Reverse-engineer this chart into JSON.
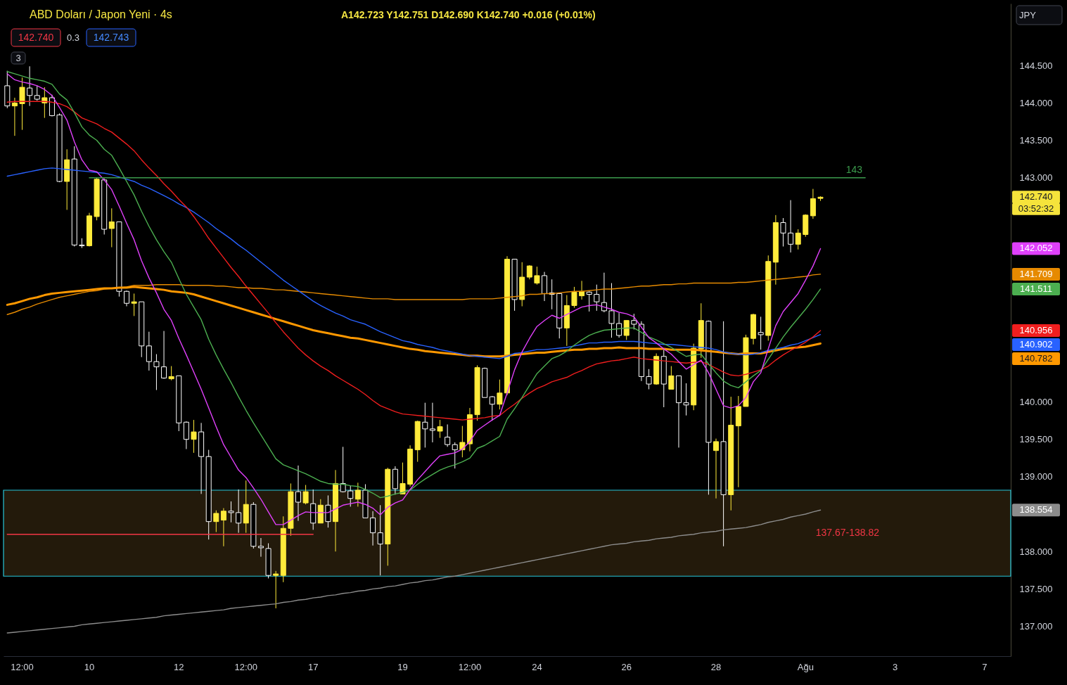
{
  "chart_data": {
    "type": "candlestick",
    "title": "ABD Doları / Japon Yeni · 4s",
    "subtitle": "A142.723 Y142.751 D142.690 K142.740 +0.016 (+0.01%)",
    "categories": [
      null,
      null,
      "12:00",
      null,
      null,
      null,
      null,
      null,
      null,
      null,
      null,
      "10",
      null,
      null,
      null,
      null,
      null,
      null,
      null,
      null,
      null,
      null,
      null,
      "12",
      null,
      null,
      null,
      null,
      null,
      null,
      null,
      null,
      "12:00",
      null,
      null,
      null,
      null,
      null,
      null,
      null,
      null,
      "17",
      null,
      null,
      null,
      null,
      null,
      null,
      null,
      null,
      null,
      null,
      null,
      "19",
      null,
      null,
      null,
      null,
      null,
      null,
      null,
      null,
      "12:00",
      null,
      null,
      null,
      null,
      null,
      null,
      null,
      null,
      "24",
      null,
      null,
      null,
      null,
      null,
      null,
      null,
      null,
      null,
      null,
      null,
      "26",
      null,
      null,
      null,
      null,
      null,
      null,
      null,
      null,
      null,
      null,
      null,
      "28",
      null,
      null,
      null,
      null,
      null,
      null,
      null,
      null,
      null,
      null,
      null,
      "Ağu",
      null,
      null,
      null,
      null,
      null,
      null,
      null,
      null,
      null,
      null,
      null,
      "3",
      null,
      null,
      null,
      null,
      null,
      null,
      null,
      null,
      null,
      null,
      null,
      "7",
      null,
      null,
      null
    ],
    "ohlc": [
      [
        144.23,
        144.43,
        143.93,
        143.96
      ],
      [
        143.96,
        144.07,
        143.56,
        144.0
      ],
      [
        143.99,
        144.34,
        143.64,
        144.21
      ],
      [
        144.2,
        144.49,
        143.96,
        144.1
      ],
      [
        144.1,
        144.23,
        144.03,
        144.05
      ],
      [
        144.0,
        144.21,
        143.8,
        144.07
      ],
      [
        144.07,
        144.11,
        143.82,
        143.83
      ],
      [
        143.84,
        143.86,
        142.94,
        142.95
      ],
      [
        142.95,
        143.38,
        142.57,
        143.24
      ],
      [
        143.25,
        143.42,
        142.08,
        142.1
      ],
      [
        142.1,
        142.19,
        142.06,
        142.09
      ],
      [
        142.09,
        142.53,
        142.08,
        142.49
      ],
      [
        142.48,
        143.0,
        142.43,
        142.98
      ],
      [
        142.97,
        142.99,
        142.24,
        142.31
      ],
      [
        142.32,
        142.59,
        142.07,
        142.41
      ],
      [
        142.41,
        142.41,
        141.41,
        141.48
      ],
      [
        141.48,
        141.49,
        141.28,
        141.32
      ],
      [
        141.32,
        141.45,
        141.15,
        141.34
      ],
      [
        141.34,
        141.34,
        140.6,
        140.75
      ],
      [
        140.75,
        140.94,
        140.42,
        140.54
      ],
      [
        140.54,
        140.64,
        140.16,
        140.47
      ],
      [
        140.47,
        140.95,
        140.31,
        140.32
      ],
      [
        140.31,
        140.48,
        140.29,
        140.34
      ],
      [
        140.35,
        140.35,
        139.61,
        139.72
      ],
      [
        139.73,
        139.74,
        139.37,
        139.5
      ],
      [
        139.5,
        139.76,
        139.32,
        139.6
      ],
      [
        139.6,
        139.72,
        138.77,
        139.27
      ],
      [
        139.27,
        139.36,
        138.16,
        138.4
      ],
      [
        138.4,
        138.55,
        138.26,
        138.51
      ],
      [
        138.42,
        138.58,
        138.07,
        138.54
      ],
      [
        138.54,
        138.67,
        138.39,
        138.52
      ],
      [
        138.52,
        138.83,
        138.25,
        138.38
      ],
      [
        138.38,
        138.95,
        138.25,
        138.63
      ],
      [
        138.63,
        138.66,
        138.04,
        138.07
      ],
      [
        138.07,
        138.18,
        137.93,
        138.05
      ],
      [
        138.04,
        138.11,
        137.64,
        137.68
      ],
      [
        137.68,
        137.74,
        137.24,
        137.7
      ],
      [
        137.68,
        138.47,
        137.59,
        138.31
      ],
      [
        138.31,
        138.91,
        138.21,
        138.8
      ],
      [
        138.8,
        139.15,
        138.41,
        138.66
      ],
      [
        138.65,
        138.89,
        138.63,
        138.8
      ],
      [
        138.64,
        138.83,
        138.29,
        138.38
      ],
      [
        138.38,
        138.7,
        138.38,
        138.62
      ],
      [
        138.62,
        138.75,
        138.32,
        138.4
      ],
      [
        138.4,
        139.09,
        138.0,
        138.91
      ],
      [
        138.91,
        139.4,
        138.79,
        138.8
      ],
      [
        138.81,
        138.88,
        138.6,
        138.71
      ],
      [
        138.7,
        138.92,
        138.6,
        138.82
      ],
      [
        138.82,
        138.9,
        138.45,
        138.45
      ],
      [
        138.45,
        138.54,
        138.08,
        138.25
      ],
      [
        138.25,
        138.62,
        137.68,
        138.1
      ],
      [
        138.1,
        139.12,
        137.81,
        139.1
      ],
      [
        139.1,
        139.14,
        138.76,
        138.84
      ],
      [
        138.77,
        139.19,
        138.77,
        138.91
      ],
      [
        138.9,
        139.42,
        138.87,
        139.37
      ],
      [
        139.36,
        139.75,
        139.2,
        139.74
      ],
      [
        139.73,
        139.99,
        139.39,
        139.64
      ],
      [
        139.64,
        139.99,
        139.46,
        139.62
      ],
      [
        139.61,
        139.76,
        139.52,
        139.67
      ],
      [
        139.53,
        139.7,
        139.4,
        139.43
      ],
      [
        139.43,
        139.46,
        139.11,
        139.36
      ],
      [
        139.36,
        139.68,
        139.26,
        139.46
      ],
      [
        139.44,
        139.92,
        139.34,
        139.83
      ],
      [
        139.83,
        140.49,
        139.75,
        140.46
      ],
      [
        140.45,
        140.46,
        140.06,
        140.06
      ],
      [
        140.07,
        140.08,
        139.75,
        139.97
      ],
      [
        139.97,
        140.3,
        139.9,
        140.12
      ],
      [
        140.12,
        141.95,
        140.09,
        141.91
      ],
      [
        141.91,
        141.91,
        141.22,
        141.37
      ],
      [
        141.37,
        141.87,
        141.28,
        141.67
      ],
      [
        141.67,
        141.83,
        141.64,
        141.82
      ],
      [
        141.59,
        141.81,
        141.57,
        141.69
      ],
      [
        141.69,
        141.74,
        141.35,
        141.45
      ],
      [
        141.46,
        141.64,
        141.24,
        141.44
      ],
      [
        141.45,
        141.46,
        140.85,
        140.99
      ],
      [
        140.99,
        141.43,
        140.75,
        141.29
      ],
      [
        141.29,
        141.54,
        141.26,
        141.47
      ],
      [
        141.42,
        141.62,
        141.37,
        141.48
      ],
      [
        141.47,
        141.48,
        141.21,
        141.44
      ],
      [
        141.44,
        141.57,
        141.22,
        141.34
      ],
      [
        141.33,
        141.73,
        141.2,
        141.22
      ],
      [
        141.22,
        141.59,
        140.86,
        141.05
      ],
      [
        141.05,
        141.19,
        140.86,
        140.89
      ],
      [
        140.89,
        141.09,
        140.83,
        141.09
      ],
      [
        141.09,
        141.18,
        140.97,
        141.04
      ],
      [
        141.04,
        141.08,
        140.28,
        140.34
      ],
      [
        140.34,
        140.44,
        140.17,
        140.24
      ],
      [
        140.24,
        140.65,
        140.23,
        140.61
      ],
      [
        140.61,
        140.7,
        139.93,
        140.24
      ],
      [
        140.17,
        140.48,
        140.17,
        140.35
      ],
      [
        140.35,
        140.35,
        139.39,
        139.99
      ],
      [
        139.99,
        140.25,
        139.82,
        139.96
      ],
      [
        139.96,
        140.78,
        139.89,
        140.72
      ],
      [
        140.71,
        141.32,
        140.59,
        141.09
      ],
      [
        141.08,
        141.09,
        138.76,
        139.46
      ],
      [
        139.35,
        139.51,
        138.71,
        139.47
      ],
      [
        139.47,
        141.08,
        138.07,
        138.76
      ],
      [
        138.76,
        140.07,
        138.55,
        139.69
      ],
      [
        139.68,
        140.08,
        138.86,
        139.94
      ],
      [
        139.94,
        140.9,
        139.94,
        140.86
      ],
      [
        140.85,
        141.18,
        140.77,
        141.17
      ],
      [
        140.93,
        141.14,
        140.7,
        140.9
      ],
      [
        140.89,
        141.96,
        140.82,
        141.88
      ],
      [
        141.87,
        142.5,
        141.57,
        142.4
      ],
      [
        142.4,
        142.46,
        142.08,
        142.26
      ],
      [
        142.26,
        142.7,
        142.0,
        142.11
      ],
      [
        142.11,
        142.31,
        142.04,
        142.26
      ],
      [
        142.24,
        142.51,
        142.21,
        142.5
      ],
      [
        142.49,
        142.85,
        142.45,
        142.72
      ],
      [
        142.723,
        142.751,
        142.69,
        142.74
      ],
      null,
      null,
      null,
      null,
      null,
      null,
      null,
      null,
      null,
      null,
      null,
      null,
      null,
      null,
      null,
      null,
      null,
      null,
      null,
      null,
      null,
      null,
      null,
      null,
      null
    ],
    "colors": [
      "#ffffff",
      "#ffeb3b",
      "#ffeb3b",
      "#ffffff",
      "#ffffff",
      "#ffeb3b",
      "#ffffff",
      "#ffffff",
      "#ffeb3b",
      "#ffffff",
      "#ffffff",
      "#ffeb3b",
      "#ffeb3b",
      "#ffffff",
      "#ffeb3b",
      "#ffffff",
      "#ffffff",
      "#ffeb3b",
      "#ffffff",
      "#ffffff",
      "#ffffff",
      "#ffffff",
      "#ffeb3b",
      "#ffffff",
      "#ffffff",
      "#ffeb3b",
      "#ffffff",
      "#ffffff",
      "#ffeb3b",
      "#ffeb3b",
      "#ffffff",
      "#ffffff",
      "#ffeb3b",
      "#ffffff",
      "#ffffff",
      "#ffffff",
      "#ffeb3b",
      "#ffeb3b",
      "#ffeb3b",
      "#ffffff",
      "#ffeb3b",
      "#ffffff",
      "#ffeb3b",
      "#ffffff",
      "#ffeb3b",
      "#ffffff",
      "#ffffff",
      "#ffeb3b",
      "#ffffff",
      "#ffffff",
      "#ffffff",
      "#ffeb3b",
      "#ffffff",
      "#ffeb3b",
      "#ffeb3b",
      "#ffeb3b",
      "#ffffff",
      "#ffffff",
      "#ffeb3b",
      "#ffffff",
      "#ffffff",
      "#ffeb3b",
      "#ffeb3b",
      "#ffeb3b",
      "#ffffff",
      "#ffffff",
      "#ffeb3b",
      "#ffeb3b",
      "#ffffff",
      "#ffeb3b",
      "#ffeb3b",
      "#ffeb3b",
      "#ffffff",
      "#ffffff",
      "#ffffff",
      "#ffeb3b",
      "#ffeb3b",
      "#ffeb3b",
      "#ffffff",
      "#ffffff",
      "#ffffff",
      "#ffffff",
      "#ffffff",
      "#ffeb3b",
      "#ffffff",
      "#ffffff",
      "#ffffff",
      "#ffeb3b",
      "#ffffff",
      "#ffeb3b",
      "#ffffff",
      "#ffffff",
      "#ffeb3b",
      "#ffeb3b",
      "#ffffff",
      "#ffeb3b",
      "#ffffff",
      "#ffeb3b",
      "#ffeb3b",
      "#ffeb3b",
      "#ffeb3b",
      "#ffffff",
      "#ffeb3b",
      "#ffeb3b",
      "#ffffff",
      "#ffffff",
      "#ffeb3b",
      "#ffeb3b",
      "#ffeb3b",
      "#ffeb3b",
      null,
      null,
      null,
      null,
      null,
      null,
      null,
      null,
      null,
      null,
      null,
      null,
      null,
      null,
      null,
      null,
      null,
      null,
      null,
      null,
      null,
      null,
      null,
      null,
      null
    ],
    "series": [
      {
        "type": "line",
        "color": "#8c8c8c",
        "values": [
          136.91,
          136.92,
          136.93,
          136.94,
          136.95,
          136.96,
          136.97,
          136.98,
          136.99,
          137.0,
          137.02,
          137.03,
          137.04,
          137.05,
          137.06,
          137.07,
          137.08,
          137.09,
          137.1,
          137.11,
          137.12,
          137.14,
          137.15,
          137.16,
          137.17,
          137.18,
          137.19,
          137.2,
          137.21,
          137.22,
          137.24,
          137.25,
          137.26,
          137.27,
          137.28,
          137.29,
          137.3,
          137.32,
          137.33,
          137.35,
          137.36,
          137.38,
          137.39,
          137.41,
          137.42,
          137.44,
          137.45,
          137.47,
          137.48,
          137.5,
          137.51,
          137.53,
          137.54,
          137.56,
          137.58,
          137.59,
          137.61,
          137.62,
          137.64,
          137.66,
          137.67,
          137.69,
          137.71,
          137.73,
          137.75,
          137.77,
          137.79,
          137.81,
          137.83,
          137.85,
          137.87,
          137.89,
          137.91,
          137.93,
          137.95,
          137.97,
          137.99,
          138.01,
          138.03,
          138.05,
          138.07,
          138.09,
          138.1,
          138.11,
          138.13,
          138.14,
          138.15,
          138.17,
          138.18,
          138.19,
          138.21,
          138.22,
          138.23,
          138.25,
          138.26,
          138.27,
          138.29,
          138.3,
          138.31,
          138.32,
          138.34,
          138.36,
          138.39,
          138.41,
          138.43,
          138.46,
          138.48,
          138.5,
          138.53,
          138.554,
          null,
          null,
          null,
          null,
          null,
          null,
          null,
          null,
          null,
          null,
          null,
          null,
          null,
          null,
          null,
          null,
          null,
          null,
          null,
          null,
          null,
          null,
          null,
          null,
          null
        ]
      },
      {
        "type": "line",
        "color": "#e68a00",
        "values": [
          141.17,
          141.2,
          141.24,
          141.27,
          141.31,
          141.34,
          141.37,
          141.4,
          141.42,
          141.44,
          141.46,
          141.48,
          141.49,
          141.51,
          141.52,
          141.53,
          141.54,
          141.56,
          141.56,
          141.56,
          141.57,
          141.57,
          141.57,
          141.57,
          141.56,
          141.56,
          141.56,
          141.56,
          141.55,
          141.55,
          141.54,
          141.53,
          141.53,
          141.52,
          141.52,
          141.51,
          141.5,
          141.5,
          141.49,
          141.48,
          141.47,
          141.46,
          141.45,
          141.44,
          141.43,
          141.42,
          141.41,
          141.4,
          141.39,
          141.38,
          141.38,
          141.38,
          141.37,
          141.37,
          141.37,
          141.37,
          141.37,
          141.37,
          141.37,
          141.37,
          141.37,
          141.37,
          141.38,
          141.38,
          141.38,
          141.38,
          141.39,
          141.4,
          141.41,
          141.42,
          141.44,
          141.44,
          141.45,
          141.45,
          141.46,
          141.47,
          141.48,
          141.48,
          141.49,
          141.5,
          141.51,
          141.51,
          141.52,
          141.53,
          141.54,
          141.55,
          141.55,
          141.56,
          141.57,
          141.57,
          141.58,
          141.58,
          141.59,
          141.59,
          141.59,
          141.59,
          141.59,
          141.59,
          141.6,
          141.6,
          141.61,
          141.62,
          141.63,
          141.64,
          141.65,
          141.66,
          141.67,
          141.68,
          141.7,
          141.709,
          null,
          null,
          null,
          null,
          null,
          null,
          null,
          null,
          null,
          null,
          null,
          null,
          null,
          null,
          null,
          null,
          null,
          null,
          null,
          null,
          null,
          null,
          null,
          null,
          null
        ]
      },
      {
        "type": "line",
        "color": "#ff9800",
        "values": [
          141.3,
          141.32,
          141.35,
          141.38,
          141.4,
          141.43,
          141.45,
          141.46,
          141.47,
          141.48,
          141.49,
          141.5,
          141.51,
          141.52,
          141.52,
          141.53,
          141.53,
          141.54,
          141.53,
          141.52,
          141.51,
          141.5,
          141.48,
          141.47,
          141.46,
          141.44,
          141.41,
          141.38,
          141.35,
          141.32,
          141.29,
          141.26,
          141.23,
          141.2,
          141.17,
          141.14,
          141.11,
          141.08,
          141.05,
          141.02,
          140.99,
          140.96,
          140.94,
          140.92,
          140.9,
          140.88,
          140.86,
          140.85,
          140.83,
          140.81,
          140.79,
          140.77,
          140.75,
          140.73,
          140.71,
          140.7,
          140.68,
          140.67,
          140.66,
          140.65,
          140.64,
          140.63,
          140.62,
          140.62,
          140.61,
          140.61,
          140.61,
          140.62,
          140.63,
          140.64,
          140.65,
          140.66,
          140.66,
          140.67,
          140.68,
          140.69,
          140.7,
          140.7,
          140.71,
          140.71,
          140.72,
          140.72,
          140.73,
          140.72,
          140.72,
          140.72,
          140.71,
          140.71,
          140.71,
          140.7,
          140.7,
          140.7,
          140.7,
          140.69,
          140.68,
          140.67,
          140.66,
          140.65,
          140.64,
          140.65,
          140.65,
          140.65,
          140.67,
          140.69,
          140.71,
          140.72,
          140.73,
          140.74,
          140.76,
          140.782,
          null,
          null,
          null,
          null,
          null,
          null,
          null,
          null,
          null,
          null,
          null,
          null,
          null,
          null,
          null,
          null,
          null,
          null,
          null,
          null,
          null,
          null,
          null,
          null,
          null
        ]
      },
      {
        "type": "line",
        "color": "#2962ff",
        "values": [
          143.02,
          143.04,
          143.06,
          143.08,
          143.1,
          143.12,
          143.13,
          143.12,
          143.11,
          143.1,
          143.09,
          143.08,
          143.07,
          143.06,
          143.04,
          143.01,
          142.98,
          142.95,
          142.9,
          142.86,
          142.81,
          142.76,
          142.71,
          142.65,
          142.6,
          142.54,
          142.47,
          142.4,
          142.32,
          142.25,
          142.18,
          142.1,
          142.03,
          141.95,
          141.87,
          141.79,
          141.71,
          141.63,
          141.56,
          141.49,
          141.42,
          141.35,
          141.29,
          141.24,
          141.19,
          141.15,
          141.1,
          141.07,
          141.04,
          140.99,
          140.94,
          140.9,
          140.86,
          140.82,
          140.8,
          140.77,
          140.75,
          140.73,
          140.7,
          140.68,
          140.66,
          140.64,
          140.62,
          140.61,
          140.6,
          140.59,
          140.58,
          140.61,
          140.65,
          140.66,
          140.68,
          140.7,
          140.7,
          140.71,
          140.72,
          140.73,
          140.75,
          140.77,
          140.79,
          140.79,
          140.8,
          140.8,
          140.81,
          140.81,
          140.81,
          140.8,
          140.79,
          140.78,
          140.77,
          140.77,
          140.76,
          140.75,
          140.74,
          140.73,
          140.72,
          140.7,
          140.67,
          140.65,
          140.64,
          140.63,
          140.64,
          140.66,
          140.69,
          140.71,
          140.73,
          140.76,
          140.78,
          140.82,
          140.86,
          140.902,
          null,
          null,
          null,
          null,
          null,
          null,
          null,
          null,
          null,
          null,
          null,
          null,
          null,
          null,
          null,
          null,
          null,
          null,
          null,
          null,
          null,
          null,
          null,
          null,
          null
        ]
      },
      {
        "type": "line",
        "color": "#f01e1e",
        "values": [
          144.01,
          144.02,
          144.02,
          144.02,
          144.02,
          144.02,
          144.01,
          143.99,
          143.95,
          143.88,
          143.8,
          143.76,
          143.72,
          143.66,
          143.61,
          143.53,
          143.45,
          143.36,
          143.24,
          143.13,
          143.03,
          142.92,
          142.82,
          142.71,
          142.61,
          142.48,
          142.34,
          142.19,
          142.06,
          141.93,
          141.8,
          141.68,
          141.55,
          141.43,
          141.31,
          141.19,
          141.06,
          140.94,
          140.83,
          140.72,
          140.63,
          140.55,
          140.48,
          140.42,
          140.35,
          140.29,
          140.23,
          140.17,
          140.1,
          140.02,
          139.95,
          139.91,
          139.87,
          139.84,
          139.83,
          139.82,
          139.81,
          139.8,
          139.79,
          139.78,
          139.77,
          139.76,
          139.77,
          139.78,
          139.79,
          139.81,
          139.82,
          139.9,
          139.97,
          140.05,
          140.12,
          140.18,
          140.22,
          140.27,
          140.3,
          140.33,
          140.38,
          140.42,
          140.47,
          140.51,
          140.53,
          140.55,
          140.56,
          140.58,
          140.6,
          140.58,
          140.57,
          140.56,
          140.55,
          140.54,
          140.53,
          140.52,
          140.53,
          140.54,
          140.5,
          140.45,
          140.4,
          140.36,
          140.35,
          140.37,
          140.4,
          140.43,
          140.48,
          140.56,
          140.63,
          140.69,
          140.74,
          140.8,
          140.87,
          140.956,
          null,
          null,
          null,
          null,
          null,
          null,
          null,
          null,
          null,
          null,
          null,
          null,
          null,
          null,
          null,
          null,
          null,
          null,
          null,
          null,
          null,
          null,
          null,
          null,
          null
        ]
      },
      {
        "type": "line",
        "color": "#4caf50",
        "values": [
          144.42,
          144.39,
          144.36,
          144.33,
          144.31,
          144.29,
          144.25,
          144.12,
          144.04,
          143.87,
          143.68,
          143.57,
          143.5,
          143.38,
          143.3,
          143.13,
          142.95,
          142.77,
          142.55,
          142.35,
          142.17,
          142.01,
          141.87,
          141.65,
          141.44,
          141.27,
          141.1,
          140.84,
          140.63,
          140.44,
          140.26,
          140.07,
          139.89,
          139.72,
          139.56,
          139.4,
          139.24,
          139.16,
          139.12,
          139.08,
          139.04,
          138.99,
          138.94,
          138.91,
          138.9,
          138.9,
          138.88,
          138.87,
          138.83,
          138.78,
          138.72,
          138.74,
          138.77,
          138.79,
          138.82,
          138.9,
          138.97,
          139.03,
          139.09,
          139.13,
          139.16,
          139.2,
          139.25,
          139.38,
          139.42,
          139.48,
          139.54,
          139.77,
          139.91,
          140.06,
          140.22,
          140.38,
          140.48,
          140.58,
          140.62,
          140.68,
          140.76,
          140.83,
          140.89,
          140.93,
          140.96,
          140.97,
          140.98,
          140.99,
          140.99,
          140.93,
          140.87,
          140.83,
          140.78,
          140.73,
          140.67,
          140.61,
          140.63,
          140.64,
          140.51,
          140.39,
          140.28,
          140.22,
          140.19,
          140.27,
          140.35,
          140.42,
          140.57,
          140.72,
          140.87,
          141.0,
          141.12,
          141.24,
          141.37,
          141.511,
          null,
          null,
          null,
          null,
          null,
          null,
          null,
          null,
          null,
          null,
          null,
          null,
          null,
          null,
          null,
          null,
          null,
          null,
          null,
          null,
          null,
          null,
          null,
          null,
          null
        ]
      },
      {
        "type": "line",
        "color": "#e040fb",
        "values": [
          144.39,
          144.31,
          144.28,
          144.26,
          144.23,
          144.18,
          144.1,
          143.94,
          143.77,
          143.48,
          143.24,
          143.1,
          143.08,
          142.97,
          142.84,
          142.62,
          142.39,
          142.17,
          141.89,
          141.66,
          141.46,
          141.24,
          141.09,
          140.85,
          140.63,
          140.4,
          140.17,
          139.92,
          139.67,
          139.43,
          139.26,
          139.09,
          138.99,
          138.85,
          138.7,
          138.53,
          138.36,
          138.36,
          138.42,
          138.48,
          138.53,
          138.52,
          138.52,
          138.52,
          138.57,
          138.62,
          138.64,
          138.66,
          138.63,
          138.58,
          138.49,
          138.59,
          138.65,
          138.69,
          138.83,
          138.96,
          139.07,
          139.18,
          139.28,
          139.3,
          139.32,
          139.37,
          139.47,
          139.62,
          139.69,
          139.76,
          139.82,
          140.12,
          140.43,
          140.67,
          140.85,
          141.01,
          141.09,
          141.16,
          141.12,
          141.17,
          141.22,
          141.27,
          141.29,
          141.3,
          141.27,
          141.24,
          141.2,
          141.18,
          141.14,
          141.0,
          140.86,
          140.79,
          140.71,
          140.64,
          140.54,
          140.44,
          140.5,
          140.56,
          140.39,
          140.17,
          139.95,
          139.92,
          139.95,
          140.06,
          140.27,
          140.39,
          140.71,
          141.02,
          141.21,
          141.33,
          141.45,
          141.63,
          141.82,
          142.052,
          null,
          null,
          null,
          null,
          null,
          null,
          null,
          null,
          null,
          null,
          null,
          null,
          null,
          null,
          null,
          null,
          null,
          null,
          null,
          null,
          null,
          null,
          null,
          null,
          null
        ]
      },
      {
        "type": "line",
        "color": "#f23645",
        "values": [
          138.23,
          138.23,
          138.23,
          138.23,
          138.23,
          138.23,
          138.23,
          138.23,
          138.23,
          138.23,
          138.23,
          138.23,
          138.23,
          138.23,
          138.23,
          138.23,
          138.23,
          138.23,
          138.23,
          138.23,
          138.23,
          138.23,
          138.23,
          138.23,
          138.23,
          138.23,
          138.23,
          138.23,
          138.23,
          138.23,
          138.23,
          138.23,
          138.23,
          138.23,
          138.23,
          138.23,
          138.23,
          138.23,
          138.23,
          138.23,
          138.23,
          138.23,
          null,
          null,
          null,
          null,
          null,
          null,
          null,
          null,
          null,
          null,
          null,
          null,
          null,
          null,
          null,
          null,
          null,
          null,
          null,
          null,
          null,
          null,
          null,
          null,
          null,
          null,
          null,
          null,
          null,
          null,
          null,
          null,
          null,
          null,
          null,
          null,
          null,
          null,
          null,
          null,
          null,
          null,
          null,
          null,
          null,
          null,
          null,
          null,
          null,
          null,
          null,
          null,
          null,
          null,
          null,
          null,
          null,
          null,
          null,
          null,
          null,
          null,
          null,
          null,
          null,
          null,
          null,
          null,
          null,
          null,
          null,
          null,
          null,
          null,
          null,
          null,
          null,
          null,
          null,
          null,
          null,
          null,
          null,
          null,
          null,
          null,
          null,
          null,
          null,
          null,
          null,
          null,
          null
        ]
      },
      {
        "type": "line",
        "name": "143",
        "color": "#3b9a4c",
        "values": [
          null,
          null,
          null,
          null,
          null,
          null,
          null,
          null,
          null,
          null,
          null,
          143,
          143,
          143,
          143,
          143,
          143,
          143,
          143,
          143,
          143,
          143,
          143,
          143,
          143,
          143,
          143,
          143,
          143,
          143,
          143,
          143,
          143,
          143,
          143,
          143,
          143,
          143,
          143,
          143,
          143,
          143,
          143,
          143,
          143,
          143,
          143,
          143,
          143,
          143,
          143,
          143,
          143,
          143,
          143,
          143,
          143,
          143,
          143,
          143,
          143,
          143,
          143,
          143,
          143,
          143,
          143,
          143,
          143,
          143,
          143,
          143,
          143,
          143,
          143,
          143,
          143,
          143,
          143,
          143,
          143,
          143,
          143,
          143,
          143,
          143,
          143,
          143,
          143,
          143,
          143,
          143,
          143,
          143,
          143,
          143,
          143,
          143,
          143,
          143,
          143,
          143,
          143,
          143,
          143,
          143,
          143,
          143,
          143,
          143,
          143,
          143,
          143,
          143,
          143,
          143,
          null,
          null,
          null,
          null,
          null,
          null,
          null,
          null,
          null,
          null,
          null,
          null,
          null,
          null,
          null,
          null,
          null,
          null,
          null
        ]
      }
    ],
    "bands": [
      {
        "axis": "y",
        "from": 137.67,
        "to": 138.82,
        "label": "137.67-138.82",
        "color": "#231a0b"
      }
    ],
    "ylim": [
      136.6,
      145.33
    ],
    "yticks": [
      {
        "value": 137,
        "label": "137.000"
      },
      {
        "value": 137.5,
        "label": "137.500"
      },
      {
        "value": 138,
        "label": "138.000"
      },
      {
        "value": 139,
        "label": "139.000"
      },
      {
        "value": 139.5,
        "label": "139.500"
      },
      {
        "value": 140,
        "label": "140.000"
      },
      {
        "value": 143,
        "label": "143.000"
      },
      {
        "value": 143.5,
        "label": "143.500"
      },
      {
        "value": 144,
        "label": "144.000"
      },
      {
        "value": 144.5,
        "label": "144.500"
      }
    ],
    "annotations": [
      "142.740",
      "0.3",
      "142.743",
      "3",
      "JPY",
      "142.740",
      "03:52:32",
      "142.052",
      "141.709",
      "141.511",
      "140.956",
      "140.902",
      "140.782",
      "138.554"
    ]
  }
}
